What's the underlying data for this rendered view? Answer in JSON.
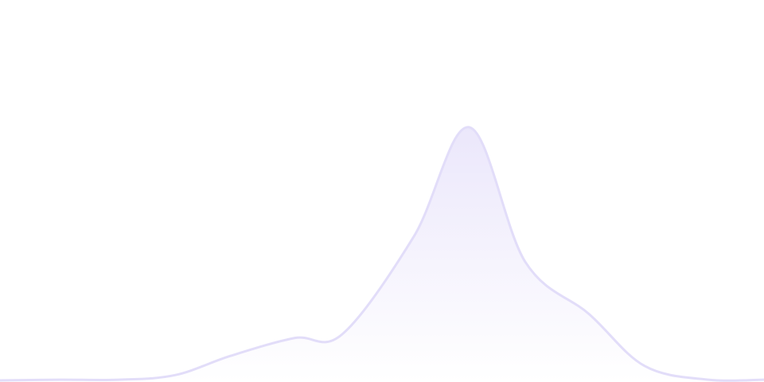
{
  "chart_data": {
    "type": "area",
    "title": "",
    "xlabel": "",
    "ylabel": "",
    "x": [
      0,
      1,
      2,
      3,
      4,
      5,
      6,
      7,
      8,
      9,
      10,
      11,
      12,
      13
    ],
    "series": [
      {
        "values": [
          0.3,
          0.6,
          0.6,
          2.4,
          10,
          17,
          18.5,
          57,
          100,
          47,
          26.5,
          6,
          0.6,
          0.6
        ]
      }
    ],
    "xlim": [
      0,
      13
    ],
    "ylim": [
      0,
      150
    ],
    "grid": false,
    "axes_visible": false,
    "smooth": true,
    "colors": {
      "stroke": "#e2ddf9",
      "fill_top": "#ebe7fb",
      "fill_bottom": "#ffffff"
    }
  }
}
